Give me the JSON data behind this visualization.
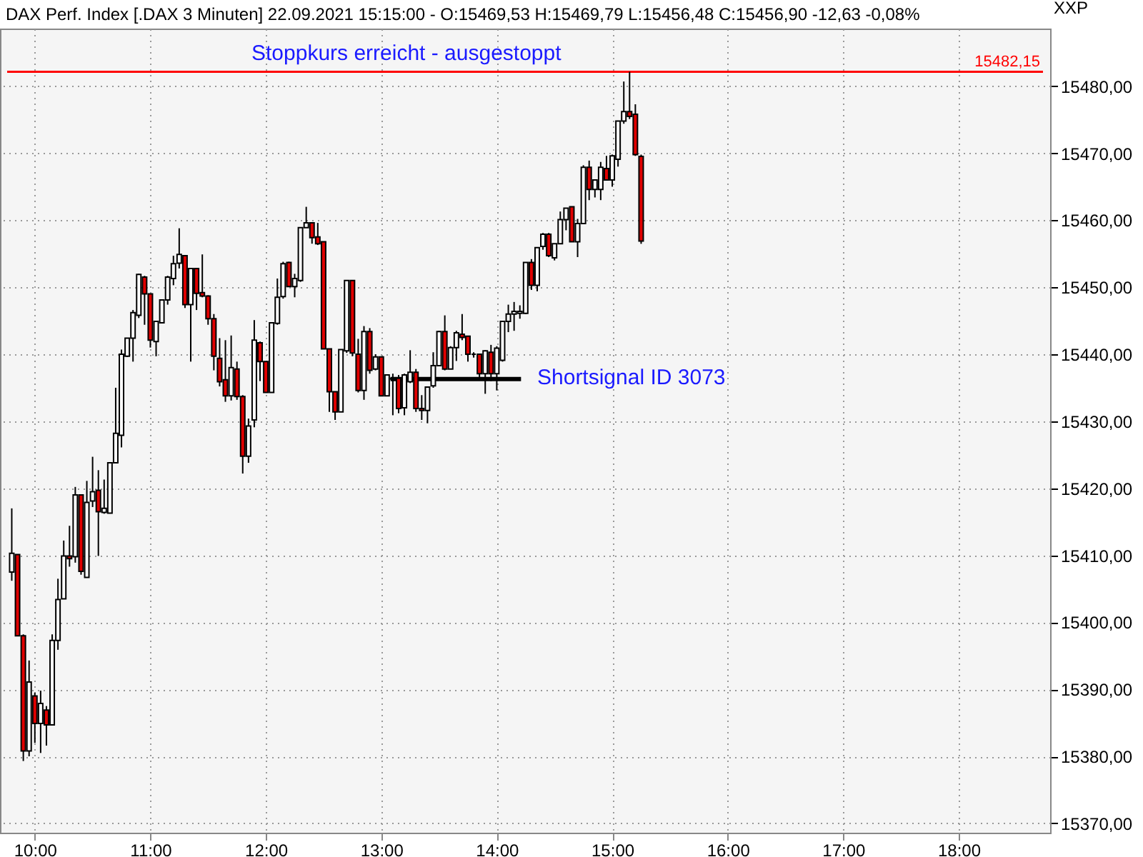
{
  "chart_data": {
    "type": "candlestick",
    "title": "DAX Perf. Index [.DAX  3 Minuten] 22.09.2021 15:15:00 - O:15469,53 H:15469,79 L:15456,48 C:15456,90 -12,63 -0,08%",
    "ylabel": "XXP",
    "x": [
      9.8,
      9.85,
      9.9,
      9.95,
      10.0,
      10.05,
      10.1,
      10.15,
      10.2,
      10.25,
      10.3,
      10.35,
      10.4,
      10.45,
      10.5,
      10.55,
      10.6,
      10.65,
      10.7,
      10.75,
      10.8,
      10.85,
      10.9,
      10.95,
      11.0,
      11.05,
      11.1,
      11.15,
      11.2,
      11.25,
      11.3,
      11.35,
      11.4,
      11.45,
      11.5,
      11.55,
      11.6,
      11.65,
      11.7,
      11.75,
      11.8,
      11.85,
      11.9,
      11.95,
      12.0,
      12.05,
      12.1,
      12.15,
      12.2,
      12.25,
      12.3,
      12.35,
      12.4,
      12.45,
      12.5,
      12.55,
      12.6,
      12.65,
      12.7,
      12.75,
      12.8,
      12.85,
      12.9,
      12.95,
      13.0,
      13.05,
      13.1,
      13.15,
      13.2,
      13.25,
      13.3,
      13.35,
      13.4,
      13.45,
      13.5,
      13.55,
      13.6,
      13.65,
      13.7,
      13.75,
      13.8,
      13.85,
      13.9,
      13.95,
      14.0,
      14.05,
      14.1,
      14.15,
      14.2,
      14.25,
      14.3,
      14.35,
      14.4,
      14.45,
      14.5,
      14.55,
      14.6,
      14.65,
      14.7,
      14.75,
      14.8,
      14.85,
      14.9,
      14.95,
      15.0,
      15.05,
      15.1,
      15.15,
      15.2,
      15.25
    ],
    "ohlc": [
      [
        15407.5,
        15417.0,
        15406.2,
        15410.3
      ],
      [
        15410.1,
        15410.1,
        15398.0,
        15398.0
      ],
      [
        15398.0,
        15398.2,
        15379.3,
        15380.8
      ],
      [
        15380.8,
        15394.3,
        15380.0,
        15391.1
      ],
      [
        15389.0,
        15389.5,
        15382.0,
        15384.9
      ],
      [
        15384.9,
        15389.8,
        15380.5,
        15387.9
      ],
      [
        15386.9,
        15387.5,
        15381.6,
        15384.7
      ],
      [
        15384.7,
        15398.2,
        15384.7,
        15397.3
      ],
      [
        15397.3,
        15406.5,
        15395.9,
        15403.4
      ],
      [
        15403.5,
        15412.2,
        15403.5,
        15409.9
      ],
      [
        15409.9,
        15414.4,
        15408.3,
        15409.5
      ],
      [
        15409.8,
        15420.2,
        15408.9,
        15419.0
      ],
      [
        15419.0,
        15419.0,
        15407.1,
        15407.6
      ],
      [
        15406.7,
        15421.1,
        15406.7,
        15417.9
      ],
      [
        15418.1,
        15424.7,
        15417.2,
        15419.5
      ],
      [
        15419.7,
        15422.7,
        15409.9,
        15416.5
      ],
      [
        15416.4,
        15421.3,
        15416.2,
        15417.0
      ],
      [
        15416.3,
        15423.8,
        15416.3,
        15423.8
      ],
      [
        15423.8,
        15435.0,
        15423.8,
        15428.2
      ],
      [
        15427.9,
        15440.7,
        15426.1,
        15440.0
      ],
      [
        15439.7,
        15442.4,
        15439.6,
        15442.4
      ],
      [
        15442.4,
        15446.6,
        15438.9,
        15446.2
      ],
      [
        15445.8,
        15452.0,
        15445.4,
        15451.9
      ],
      [
        15451.5,
        15451.7,
        15444.4,
        15449.0
      ],
      [
        15449.0,
        15449.0,
        15441.0,
        15442.1
      ],
      [
        15441.9,
        15444.9,
        15439.7,
        15444.9
      ],
      [
        15444.7,
        15448.1,
        15444.6,
        15448.1
      ],
      [
        15448.1,
        15451.7,
        15447.4,
        15451.5
      ],
      [
        15451.3,
        15454.7,
        15450.3,
        15453.5
      ],
      [
        15453.6,
        15458.8,
        15452.8,
        15454.9
      ],
      [
        15454.7,
        15454.7,
        15446.9,
        15447.4
      ],
      [
        15447.4,
        15452.8,
        15438.9,
        15452.8
      ],
      [
        15452.8,
        15452.8,
        15446.6,
        15449.1
      ],
      [
        15449.2,
        15454.9,
        15448.5,
        15448.7
      ],
      [
        15448.7,
        15448.8,
        15444.4,
        15445.3
      ],
      [
        15445.3,
        15446.0,
        15437.6,
        15439.7
      ],
      [
        15439.4,
        15442.4,
        15435.2,
        15435.9
      ],
      [
        15436.2,
        15442.1,
        15432.9,
        15433.8
      ],
      [
        15433.8,
        15442.8,
        15433.1,
        15438.0
      ],
      [
        15437.8,
        15438.9,
        15433.2,
        15433.7
      ],
      [
        15433.7,
        15433.9,
        15422.2,
        15424.8
      ],
      [
        15424.8,
        15430.4,
        15423.8,
        15429.3
      ],
      [
        15430.2,
        15445.1,
        15429.1,
        15442.1
      ],
      [
        15441.7,
        15441.9,
        15436.0,
        15438.9
      ],
      [
        15438.9,
        15438.9,
        15434.3,
        15434.3
      ],
      [
        15434.3,
        15444.7,
        15434.3,
        15444.7
      ],
      [
        15444.6,
        15451.3,
        15444.4,
        15448.5
      ],
      [
        15448.6,
        15453.8,
        15448.3,
        15453.5
      ],
      [
        15453.7,
        15453.8,
        15450.1,
        15450.1
      ],
      [
        15450.1,
        15452.0,
        15448.5,
        15451.3
      ],
      [
        15451.0,
        15458.9,
        15450.8,
        15458.9
      ],
      [
        15458.9,
        15462.0,
        15458.9,
        15459.6
      ],
      [
        15459.6,
        15459.6,
        15456.5,
        15457.4
      ],
      [
        15457.5,
        15459.6,
        15456.3,
        15456.5
      ],
      [
        15456.8,
        15456.8,
        15440.8,
        15440.8
      ],
      [
        15440.8,
        15440.8,
        15431.4,
        15434.4
      ],
      [
        15434.4,
        15434.4,
        15430.2,
        15431.4
      ],
      [
        15431.4,
        15440.7,
        15431.4,
        15440.7
      ],
      [
        15440.5,
        15451.0,
        15440.2,
        15451.0
      ],
      [
        15451.0,
        15451.0,
        15439.7,
        15440.2
      ],
      [
        15440.0,
        15442.3,
        15434.3,
        15434.6
      ],
      [
        15434.6,
        15444.2,
        15433.2,
        15443.4
      ],
      [
        15443.4,
        15443.9,
        15437.1,
        15437.6
      ],
      [
        15437.8,
        15440.0,
        15437.6,
        15439.6
      ],
      [
        15439.6,
        15439.6,
        15433.8,
        15433.8
      ],
      [
        15433.8,
        15436.9,
        15433.8,
        15436.9
      ],
      [
        15436.4,
        15437.1,
        15430.9,
        15436.3
      ],
      [
        15436.4,
        15436.9,
        15431.2,
        15431.9
      ],
      [
        15432.0,
        15437.1,
        15430.9,
        15436.9
      ],
      [
        15435.9,
        15440.6,
        15435.7,
        15437.3
      ],
      [
        15437.3,
        15437.8,
        15431.4,
        15431.9
      ],
      [
        15431.9,
        15433.9,
        15430.2,
        15431.6
      ],
      [
        15431.6,
        15435.1,
        15429.7,
        15435.1
      ],
      [
        15435.3,
        15440.3,
        15435.0,
        15438.3
      ],
      [
        15438.3,
        15443.5,
        15438.2,
        15443.4
      ],
      [
        15443.4,
        15445.8,
        15437.6,
        15437.8
      ],
      [
        15437.8,
        15441.2,
        15437.8,
        15441.0
      ],
      [
        15441.0,
        15443.5,
        15439.0,
        15443.2
      ],
      [
        15443.0,
        15446.0,
        15442.1,
        15442.5
      ],
      [
        15442.7,
        15442.7,
        15438.9,
        15440.0
      ],
      [
        15440.0,
        15440.3,
        15439.5,
        15440.0
      ],
      [
        15440.0,
        15440.0,
        15436.1,
        15437.1
      ],
      [
        15437.1,
        15440.6,
        15434.1,
        15440.5
      ],
      [
        15440.3,
        15441.4,
        15436.0,
        15437.1
      ],
      [
        15437.1,
        15441.2,
        15434.6,
        15440.9
      ],
      [
        15439.1,
        15444.9,
        15438.9,
        15444.9
      ],
      [
        15444.9,
        15447.4,
        15443.3,
        15446.0
      ],
      [
        15446.0,
        15447.8,
        15443.5,
        15446.4
      ],
      [
        15446.1,
        15447.3,
        15445.3,
        15446.4
      ],
      [
        15446.1,
        15453.7,
        15446.0,
        15453.7
      ],
      [
        15453.7,
        15454.2,
        15449.6,
        15450.3
      ],
      [
        15450.3,
        15455.9,
        15449.4,
        15455.9
      ],
      [
        15456.1,
        15458.1,
        15455.6,
        15457.9
      ],
      [
        15457.9,
        15458.1,
        15454.5,
        15454.7
      ],
      [
        15454.4,
        15456.5,
        15454.0,
        15456.5
      ],
      [
        15456.5,
        15461.3,
        15456.5,
        15460.1
      ],
      [
        15460.1,
        15461.8,
        15458.5,
        15461.8
      ],
      [
        15462.0,
        15462.0,
        15456.8,
        15456.8
      ],
      [
        15456.8,
        15460.2,
        15454.5,
        15459.5
      ],
      [
        15459.5,
        15468.2,
        15459.4,
        15467.9
      ],
      [
        15467.9,
        15468.9,
        15463.0,
        15464.6
      ],
      [
        15464.6,
        15466.0,
        15463.4,
        15466.0
      ],
      [
        15464.6,
        15468.7,
        15463.0,
        15467.9
      ],
      [
        15467.7,
        15469.6,
        15466.0,
        15466.0
      ],
      [
        15466.0,
        15469.8,
        15465.0,
        15469.6
      ],
      [
        15469.1,
        15474.8,
        15468.0,
        15474.8
      ],
      [
        15474.8,
        15480.7,
        15474.4,
        15476.2
      ],
      [
        15476.2,
        15482.15,
        15475.1,
        15475.5
      ],
      [
        15475.8,
        15477.3,
        15469.6,
        15469.8
      ],
      [
        15469.53,
        15469.79,
        15456.48,
        15456.9
      ]
    ],
    "colors": [
      "#ffffff",
      "#e00000",
      "#e00000",
      "#ffffff",
      "#e00000",
      "#ffffff",
      "#e00000",
      "#ffffff",
      "#ffffff",
      "#ffffff",
      "#e00000",
      "#ffffff",
      "#e00000",
      "#ffffff",
      "#ffffff",
      "#e00000",
      "#ffffff",
      "#ffffff",
      "#ffffff",
      "#ffffff",
      "#ffffff",
      "#ffffff",
      "#ffffff",
      "#e00000",
      "#e00000",
      "#ffffff",
      "#ffffff",
      "#ffffff",
      "#ffffff",
      "#ffffff",
      "#e00000",
      "#ffffff",
      "#e00000",
      "#e00000",
      "#e00000",
      "#e00000",
      "#e00000",
      "#e00000",
      "#ffffff",
      "#e00000",
      "#e00000",
      "#ffffff",
      "#ffffff",
      "#e00000",
      "#e00000",
      "#ffffff",
      "#ffffff",
      "#ffffff",
      "#e00000",
      "#ffffff",
      "#ffffff",
      "#ffffff",
      "#e00000",
      "#e00000",
      "#e00000",
      "#e00000",
      "#e00000",
      "#ffffff",
      "#ffffff",
      "#e00000",
      "#e00000",
      "#ffffff",
      "#e00000",
      "#ffffff",
      "#e00000",
      "#ffffff",
      "#e00000",
      "#e00000",
      "#ffffff",
      "#ffffff",
      "#e00000",
      "#e00000",
      "#ffffff",
      "#ffffff",
      "#ffffff",
      "#e00000",
      "#ffffff",
      "#ffffff",
      "#e00000",
      "#e00000",
      "#000000",
      "#e00000",
      "#ffffff",
      "#e00000",
      "#ffffff",
      "#ffffff",
      "#ffffff",
      "#ffffff",
      "#ffffff",
      "#ffffff",
      "#e00000",
      "#ffffff",
      "#ffffff",
      "#e00000",
      "#ffffff",
      "#ffffff",
      "#ffffff",
      "#e00000",
      "#ffffff",
      "#ffffff",
      "#e00000",
      "#ffffff",
      "#ffffff",
      "#e00000",
      "#ffffff",
      "#ffffff",
      "#ffffff",
      "#e00000",
      "#e00000",
      "#e00000"
    ],
    "series": [
      {
        "type": "line",
        "x": [
          13.08,
          14.21
        ],
        "values": [
          15436.3,
          15436.3
        ],
        "color": "#000000"
      }
    ],
    "xlim": [
      9.76,
      18.73
    ],
    "xticks": [
      {
        "value": 10,
        "label": "10:00"
      },
      {
        "value": 11,
        "label": "11:00"
      },
      {
        "value": 12,
        "label": "12:00"
      },
      {
        "value": 13,
        "label": "13:00"
      },
      {
        "value": 14,
        "label": "14:00"
      },
      {
        "value": 15,
        "label": "15:00"
      },
      {
        "value": 16,
        "label": "16:00"
      },
      {
        "value": 17,
        "label": "17:00"
      },
      {
        "value": 18,
        "label": "18:00"
      }
    ],
    "ylim": [
      15368.6,
      15488.6
    ],
    "yticks": [
      {
        "value": 15370,
        "label": "15370,00"
      },
      {
        "value": 15380,
        "label": "15380,00"
      },
      {
        "value": 15390,
        "label": "15390,00"
      },
      {
        "value": 15400,
        "label": "15400,00"
      },
      {
        "value": 15410,
        "label": "15410,00"
      },
      {
        "value": 15420,
        "label": "15420,00"
      },
      {
        "value": 15430,
        "label": "15430,00"
      },
      {
        "value": 15440,
        "label": "15440,00"
      },
      {
        "value": 15450,
        "label": "15450,00"
      },
      {
        "value": 15460,
        "label": "15460,00"
      },
      {
        "value": 15470,
        "label": "15470,00"
      },
      {
        "value": 15480,
        "label": "15480,00"
      }
    ],
    "grid": true,
    "ref_lines": [
      {
        "axis": "y",
        "value": 15482.15,
        "label": "15482,15",
        "color": "#ff0000"
      }
    ],
    "annotations": [
      "Stoppkurs erreicht - ausgestoppt",
      "Shortsignal ID 3073"
    ]
  }
}
